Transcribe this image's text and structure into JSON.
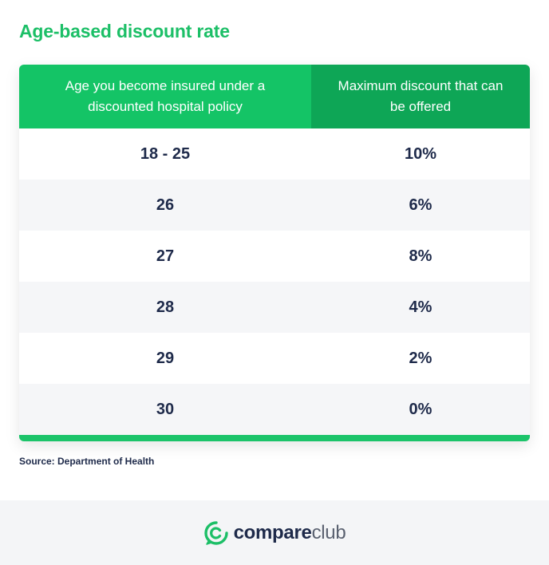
{
  "title": "Age-based discount rate",
  "table": {
    "headers": [
      "Age you become insured under a discounted hospital policy",
      "Maximum discount that can be offered"
    ],
    "rows": [
      {
        "age": "18 - 25",
        "discount": "10%"
      },
      {
        "age": "26",
        "discount": "6%"
      },
      {
        "age": "27",
        "discount": "8%"
      },
      {
        "age": "28",
        "discount": "4%"
      },
      {
        "age": "29",
        "discount": "2%"
      },
      {
        "age": "30",
        "discount": "0%"
      }
    ]
  },
  "source": "Source: Department of Health",
  "footer": {
    "brand_bold": "compare",
    "brand_light": "club",
    "logo_icon": "compareclub-logo-icon"
  },
  "colors": {
    "accent_green": "#1cbf67",
    "header_dark_green": "#0ea656",
    "text_navy": "#1e2a4a"
  }
}
